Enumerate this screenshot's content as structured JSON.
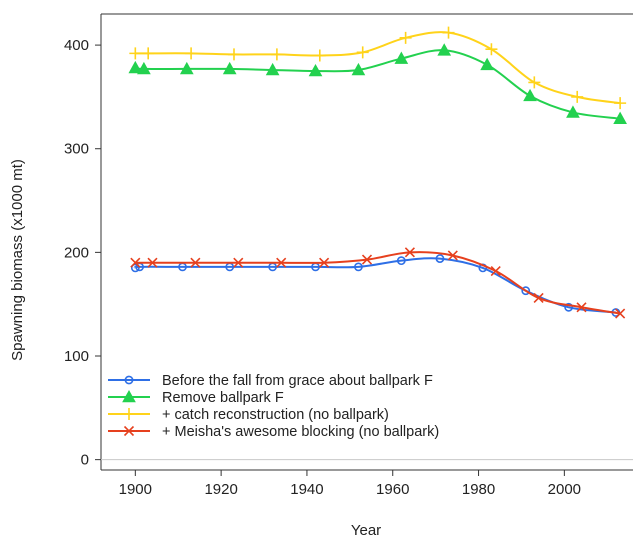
{
  "chart_data": {
    "type": "line",
    "title": "",
    "xlabel": "Year",
    "ylabel": "Spawning biomass (x1000 mt)",
    "xlim": [
      1892,
      2016
    ],
    "ylim": [
      -10,
      430
    ],
    "x_ticks": [
      1900,
      1920,
      1940,
      1960,
      1980,
      2000
    ],
    "y_ticks": [
      0,
      100,
      200,
      300,
      400
    ],
    "grid": false,
    "reference_line_y": 0,
    "legend_placement": "bottom-left",
    "series": [
      {
        "name": "Before the fall from grace about ballpark F",
        "color": "#2e6fe6",
        "marker": "circle",
        "x": [
          1900,
          1901,
          1911,
          1922,
          1932,
          1942,
          1952,
          1962,
          1971,
          1981,
          1991,
          2001,
          2012
        ],
        "values": [
          185,
          186,
          186,
          186,
          186,
          186,
          186,
          192,
          194,
          185,
          163,
          147,
          142
        ]
      },
      {
        "name": "Remove ballpark F",
        "color": "#23d14f",
        "marker": "triangle",
        "x": [
          1900,
          1902,
          1912,
          1922,
          1932,
          1942,
          1952,
          1962,
          1972,
          1982,
          1992,
          2002,
          2013
        ],
        "values": [
          378,
          377,
          377,
          377,
          376,
          375,
          376,
          387,
          395,
          381,
          351,
          335,
          329
        ]
      },
      {
        "name": "+ catch reconstruction (no ballpark)",
        "color": "#ffd31a",
        "marker": "plus",
        "x": [
          1900,
          1903,
          1913,
          1923,
          1933,
          1943,
          1953,
          1963,
          1973,
          1983,
          1993,
          2003,
          2013
        ],
        "values": [
          392,
          392,
          392,
          391,
          391,
          390,
          393,
          407,
          412,
          396,
          364,
          350,
          344
        ]
      },
      {
        "name": "+ Meisha's awesome blocking (no ballpark)",
        "color": "#e6401e",
        "marker": "x",
        "x": [
          1900,
          1904,
          1914,
          1924,
          1934,
          1944,
          1954,
          1964,
          1974,
          1984,
          1994,
          2004,
          2013
        ],
        "values": [
          190,
          190,
          190,
          190,
          190,
          190,
          193,
          200,
          197,
          182,
          156,
          147,
          141
        ]
      }
    ]
  }
}
